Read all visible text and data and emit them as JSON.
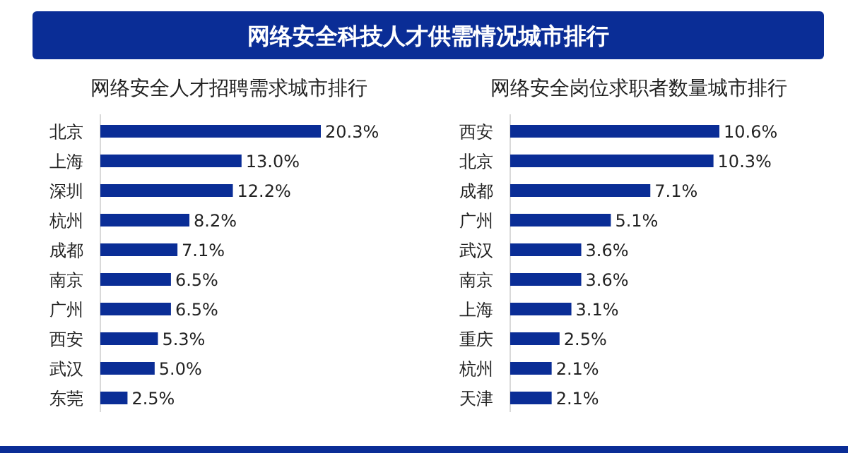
{
  "chart_data": [
    {
      "type": "bar",
      "orientation": "horizontal",
      "title": "网络安全科技人才供需情况城市排行",
      "subtitle": "网络安全人才招聘需求城市排行",
      "categories": [
        "北京",
        "上海",
        "深圳",
        "杭州",
        "成都",
        "南京",
        "广州",
        "西安",
        "武汉",
        "东莞"
      ],
      "values": [
        20.3,
        13.0,
        12.2,
        8.2,
        7.1,
        6.5,
        6.5,
        5.3,
        5.0,
        2.5
      ],
      "value_labels": [
        "20.3%",
        "13.0%",
        "12.2%",
        "8.2%",
        "7.1%",
        "6.5%",
        "6.5%",
        "5.3%",
        "5.0%",
        "2.5%"
      ],
      "color": "#0a2d96"
    },
    {
      "type": "bar",
      "orientation": "horizontal",
      "subtitle": "网络安全岗位求职者数量城市排行",
      "categories": [
        "西安",
        "北京",
        "成都",
        "广州",
        "武汉",
        "南京",
        "上海",
        "重庆",
        "杭州",
        "天津"
      ],
      "values": [
        10.6,
        10.3,
        7.1,
        5.1,
        3.6,
        3.6,
        3.1,
        2.5,
        2.1,
        2.1
      ],
      "value_labels": [
        "10.6%",
        "10.3%",
        "7.1%",
        "5.1%",
        "3.6%",
        "3.6%",
        "3.1%",
        "2.5%",
        "2.1%",
        "2.1%"
      ],
      "color": "#0a2d96"
    }
  ]
}
